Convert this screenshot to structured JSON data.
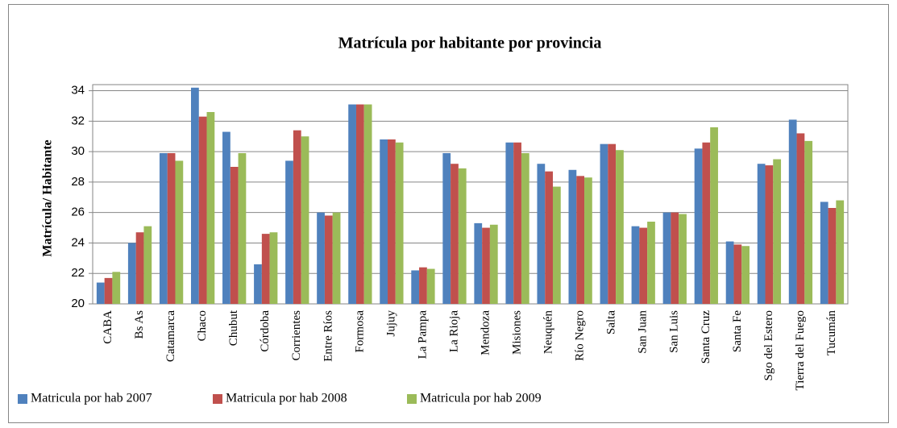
{
  "chart_data": {
    "type": "bar",
    "title": "Matrícula por habitante por provincia",
    "y_label": "Matrícula/ Habitante",
    "categories": [
      "CABA",
      "Bs As",
      "Catamarca",
      "Chaco",
      "Chubut",
      "Córdoba",
      "Corrientes",
      "Entre Ríos",
      "Formosa",
      "Jujuy",
      "La Pampa",
      "La Rioja",
      "Mendoza",
      "Misiones",
      "Neuquén",
      "Río Negro",
      "Salta",
      "San Juan",
      "San Luis",
      "Santa Cruz",
      "Santa Fe",
      "Sgo del Estero",
      "Tierra del Fuego",
      "Tucumán"
    ],
    "series": [
      {
        "name": "Matricula por hab 2007",
        "color": "#4f81bd",
        "values": [
          21.4,
          24.0,
          29.9,
          34.2,
          31.3,
          22.6,
          29.4,
          26.0,
          33.1,
          30.8,
          22.2,
          29.9,
          25.3,
          30.6,
          29.2,
          28.8,
          30.5,
          25.1,
          26.0,
          30.2,
          24.1,
          29.2,
          32.1,
          26.7
        ]
      },
      {
        "name": "Matricula por hab 2008",
        "color": "#c0504d",
        "values": [
          21.7,
          24.7,
          29.9,
          32.3,
          29.0,
          24.6,
          31.4,
          25.8,
          33.1,
          30.8,
          22.4,
          29.2,
          25.0,
          30.6,
          28.7,
          28.4,
          30.5,
          25.0,
          26.0,
          30.6,
          23.9,
          29.1,
          31.2,
          26.3
        ]
      },
      {
        "name": "Matricula por hab 2009",
        "color": "#9bbb59",
        "values": [
          22.1,
          25.1,
          29.4,
          32.6,
          29.9,
          24.7,
          31.0,
          26.0,
          33.1,
          30.6,
          22.3,
          28.9,
          25.2,
          29.9,
          27.7,
          28.3,
          30.1,
          25.4,
          25.9,
          31.6,
          23.8,
          29.5,
          30.7,
          26.8
        ]
      }
    ],
    "ylim": [
      20,
      34.4
    ],
    "yticks": [
      20,
      22,
      24,
      26,
      28,
      30,
      32,
      34
    ],
    "grid": true,
    "legend": "bottom"
  }
}
